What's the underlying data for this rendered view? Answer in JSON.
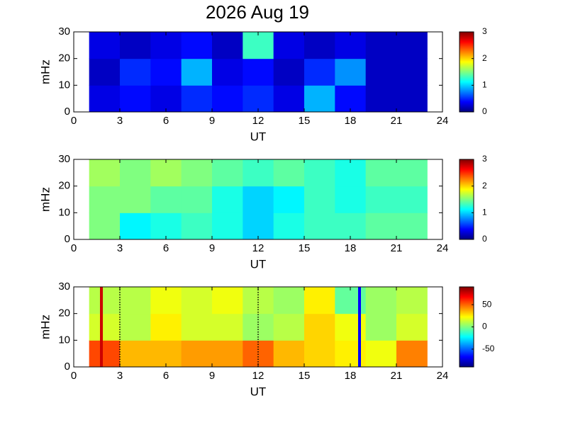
{
  "title": "2026 Aug 19",
  "chart_data": [
    {
      "type": "heatmap",
      "xlabel": "UT",
      "ylabel": "mHz",
      "xlim": [
        0,
        24
      ],
      "xticks": [
        0,
        3,
        6,
        9,
        12,
        15,
        18,
        21,
        24
      ],
      "ylim": [
        0,
        30
      ],
      "yticks": [
        0,
        10,
        20,
        30
      ],
      "clim": [
        0,
        3
      ],
      "cticks": [
        0,
        1,
        2,
        3
      ],
      "x": [
        1,
        3,
        5,
        7,
        9,
        11,
        13,
        15,
        17,
        19,
        21,
        23
      ],
      "y": [
        0,
        10,
        20,
        30
      ],
      "z": [
        [
          0.3,
          0.4,
          0.3,
          0.5,
          0.4,
          0.5,
          0.3,
          0.9,
          0.4,
          0.2,
          0.2
        ],
        [
          0.2,
          0.5,
          0.4,
          0.9,
          0.3,
          0.4,
          0.2,
          0.5,
          0.8,
          0.2,
          0.2
        ],
        [
          0.3,
          0.2,
          0.3,
          0.4,
          0.2,
          1.3,
          0.3,
          0.2,
          0.3,
          0.2,
          0.2
        ]
      ],
      "lines": []
    },
    {
      "type": "heatmap",
      "xlabel": "UT",
      "ylabel": "mHz",
      "xlim": [
        0,
        24
      ],
      "xticks": [
        0,
        3,
        6,
        9,
        12,
        15,
        18,
        21,
        24
      ],
      "ylim": [
        0,
        30
      ],
      "yticks": [
        0,
        10,
        20,
        30
      ],
      "clim": [
        0,
        3
      ],
      "cticks": [
        0,
        1,
        2,
        3
      ],
      "x": [
        1,
        3,
        5,
        7,
        9,
        11,
        13,
        15,
        17,
        19,
        21,
        23
      ],
      "y": [
        0,
        10,
        20,
        30
      ],
      "z": [
        [
          1.5,
          1.1,
          1.2,
          1.3,
          1.2,
          1.0,
          1.2,
          1.3,
          1.3,
          1.4,
          1.4
        ],
        [
          1.5,
          1.5,
          1.4,
          1.4,
          1.2,
          1.0,
          1.1,
          1.3,
          1.2,
          1.3,
          1.3
        ],
        [
          1.6,
          1.5,
          1.6,
          1.5,
          1.4,
          1.3,
          1.4,
          1.3,
          1.2,
          1.4,
          1.4
        ]
      ],
      "lines": []
    },
    {
      "type": "heatmap",
      "xlabel": "UT",
      "ylabel": "mHz",
      "xlim": [
        0,
        24
      ],
      "xticks": [
        0,
        3,
        6,
        9,
        12,
        15,
        18,
        21,
        24
      ],
      "ylim": [
        0,
        30
      ],
      "yticks": [
        0,
        10,
        20,
        30
      ],
      "clim": [
        -90,
        90
      ],
      "cticks": [
        -50,
        0,
        50
      ],
      "x": [
        1,
        3,
        5,
        7,
        9,
        11,
        13,
        15,
        17,
        19,
        21,
        23
      ],
      "y": [
        0,
        10,
        20,
        30
      ],
      "z": [
        [
          55,
          35,
          35,
          40,
          40,
          50,
          35,
          30,
          25,
          20,
          45
        ],
        [
          15,
          10,
          25,
          15,
          15,
          5,
          10,
          30,
          20,
          5,
          15
        ],
        [
          10,
          10,
          20,
          15,
          20,
          10,
          5,
          25,
          -5,
          5,
          10
        ]
      ],
      "lines": [
        {
          "x": 1.8,
          "color": "#cc0000",
          "style": "solid"
        },
        {
          "x": 3,
          "color": "#000000",
          "style": "dotted"
        },
        {
          "x": 12,
          "color": "#000000",
          "style": "dotted"
        },
        {
          "x": 18.6,
          "color": "#0000ff",
          "style": "solid"
        }
      ]
    }
  ]
}
